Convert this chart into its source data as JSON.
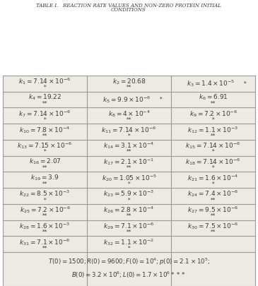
{
  "rows": [
    [
      [
        "k_{1} = 7.14 x 10^{-6}",
        "*"
      ],
      [
        "k_{2} = 20.68",
        "**"
      ],
      [
        "k_{3} = 1.4 x 10^{-5}",
        "*",
        "right"
      ]
    ],
    [
      [
        "k_{4} = 19.22",
        "**"
      ],
      [
        "k_{5} = 9.9 x 10^{-6}",
        "*",
        "right"
      ],
      [
        "k_{6} = 6.91",
        "**"
      ]
    ],
    [
      [
        "k_{7} = 7.14 x 10^{-6}",
        "*"
      ],
      [
        "k_{8} = 4 x 10^{-4}",
        "**"
      ],
      [
        "k_{9} = 7.2 x 10^{-6}",
        "*"
      ]
    ],
    [
      [
        "k_{10} = 7.8 x 10^{-4}",
        "**"
      ],
      [
        "k_{11} = 7.14 x 10^{-6}",
        "*"
      ],
      [
        "k_{12} = 1.1 x 10^{-3}",
        "**"
      ]
    ],
    [
      [
        "k_{13} = 7.15 x 10^{-6}",
        "*"
      ],
      [
        "k_{14} = 3.1 x 10^{-4}",
        "**"
      ],
      [
        "k_{15} = 7.14 x 10^{-6}",
        "*"
      ]
    ],
    [
      [
        "k_{16} = 2.07",
        "**"
      ],
      [
        "k_{17} = 2.1 x 10^{-1}",
        "**"
      ],
      [
        "k_{18} = 7.14 x 10^{-6}",
        "*"
      ]
    ],
    [
      [
        "k_{19} = 3.9",
        "**"
      ],
      [
        "k_{20} = 1.05 x 10^{-5}",
        "*"
      ],
      [
        "k_{21} = 1.6 x 10^{-4}",
        "*"
      ]
    ],
    [
      [
        "k_{22} = 8.5 x 10^{-3}",
        "*"
      ],
      [
        "k_{23} = 5.9 x 10^{-3}",
        "*"
      ],
      [
        "k_{24} = 7.4 x 10^{-6}",
        "**"
      ]
    ],
    [
      [
        "k_{25} = 7.2 x 10^{-6}",
        "**"
      ],
      [
        "k_{26} = 2.8 x 10^{-4}",
        "**"
      ],
      [
        "k_{27} = 9.5 x 10^{-6}",
        "**"
      ]
    ],
    [
      [
        "k_{28} = 1.6 x 10^{-3}",
        "**"
      ],
      [
        "k_{29} = 7.1 x 10^{-6}",
        "**"
      ],
      [
        "k_{30} = 7.5 x 10^{-6}",
        "**"
      ]
    ],
    [
      [
        "k_{31} = 7.1 x 10^{-6}",
        "**"
      ],
      [
        "k_{32} = 1.1 x 10^{-2}",
        "*"
      ],
      [
        "",
        ""
      ]
    ]
  ],
  "footer_line1": "T(0)=1500;  R(0)=9600;  F(0)=10^{4};  p(0)=2.1 x 10^{5};",
  "footer_line2": "B(0)=3.2 x 10^{6};  L(0)=1.7 x 10^{6}  ***",
  "bg_color": "#ede9e3",
  "text_color": "#3a3a3a",
  "border_color": "#999999"
}
